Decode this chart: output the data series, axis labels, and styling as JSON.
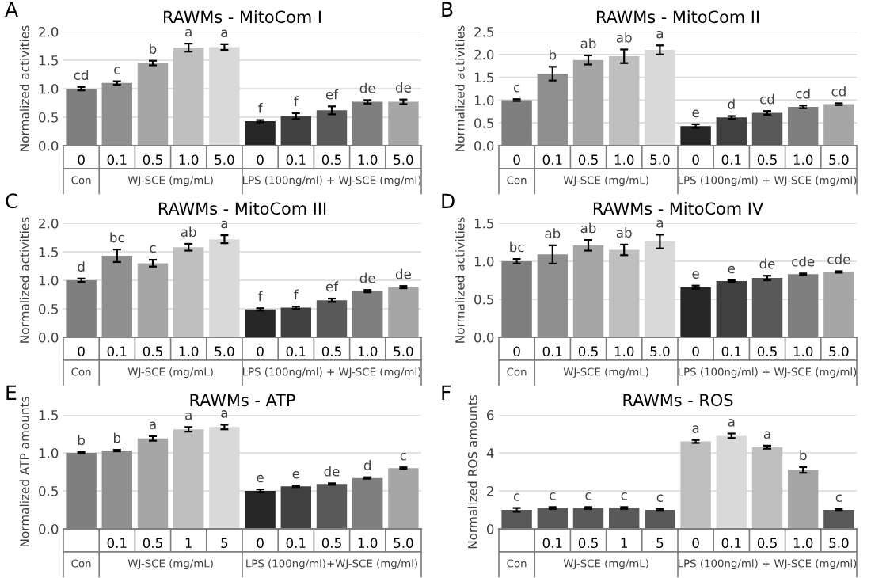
{
  "chart_data": [
    {
      "type": "bar",
      "title": "RAWMs - MitoCom I",
      "ylabel": "Normalized activities",
      "annotations": [
        "A",
        "Con",
        "WJ-SCE (mg/mL)",
        "LPS (100ng/ml) + WJ-SCE (mg/ml)"
      ],
      "categories": [
        "0",
        "0.1",
        "0.5",
        "1.0",
        "5.0",
        "0",
        "0.1",
        "0.5",
        "1.0",
        "5.0"
      ],
      "values": [
        1.0,
        1.1,
        1.45,
        1.72,
        1.73,
        0.43,
        0.52,
        0.62,
        0.77,
        0.77
      ],
      "errors": [
        0.03,
        0.03,
        0.04,
        0.07,
        0.05,
        0.02,
        0.05,
        0.07,
        0.03,
        0.04
      ],
      "value_labels": [
        "cd",
        "c",
        "b",
        "a",
        "a",
        "f",
        "f",
        "ef",
        "de",
        "de"
      ],
      "colors": [
        "#7f7f7f",
        "#8f8f8f",
        "#a6a6a6",
        "#bfbfbf",
        "#d9d9d9",
        "#262626",
        "#404040",
        "#595959",
        "#7f7f7f",
        "#a6a6a6"
      ],
      "ylim": [
        0,
        2
      ],
      "yticks": [
        {
          "value": 0,
          "label": "0.0"
        },
        {
          "value": 0.5,
          "label": "0.5"
        },
        {
          "value": 1,
          "label": "1.0"
        },
        {
          "value": 1.5,
          "label": "1.5"
        },
        {
          "value": 2,
          "label": "2.0"
        }
      ],
      "grid": "y",
      "legend": false
    },
    {
      "type": "bar",
      "title": "RAWMs - MitoCom II",
      "ylabel": "Normalized activities",
      "annotations": [
        "B",
        "Con",
        "WJ-SCE (mg/mL)",
        "LPS (100ng/ml) + WJ-SCE (mg/ml)"
      ],
      "categories": [
        "0",
        "0.1",
        "0.5",
        "1.0",
        "5.0",
        "0",
        "0.1",
        "0.5",
        "1.0",
        "5.0"
      ],
      "values": [
        1.0,
        1.58,
        1.88,
        1.96,
        2.1,
        0.43,
        0.62,
        0.72,
        0.85,
        0.91
      ],
      "errors": [
        0.02,
        0.15,
        0.1,
        0.15,
        0.1,
        0.04,
        0.03,
        0.04,
        0.03,
        0.02
      ],
      "value_labels": [
        "c",
        "b",
        "ab",
        "ab",
        "a",
        "e",
        "d",
        "cd",
        "cd",
        "cd"
      ],
      "colors": [
        "#7f7f7f",
        "#8f8f8f",
        "#a6a6a6",
        "#bfbfbf",
        "#d9d9d9",
        "#262626",
        "#404040",
        "#595959",
        "#7f7f7f",
        "#a6a6a6"
      ],
      "ylim": [
        0,
        2.5
      ],
      "yticks": [
        {
          "value": 0,
          "label": "0.0"
        },
        {
          "value": 0.5,
          "label": "0.5"
        },
        {
          "value": 1,
          "label": "1.0"
        },
        {
          "value": 1.5,
          "label": "1.5"
        },
        {
          "value": 2,
          "label": "2.0"
        },
        {
          "value": 2.5,
          "label": "2.5"
        }
      ],
      "grid": "y",
      "legend": false
    },
    {
      "type": "bar",
      "title": "RAWMs - MitoCom III",
      "ylabel": "Normalized activities",
      "annotations": [
        "C",
        "Con",
        "WJ-SCE (mg/mL)",
        "LPS (100ng/ml) + WJ-SCE (mg/ml)"
      ],
      "categories": [
        "0",
        "0.1",
        "0.5",
        "1.0",
        "5.0",
        "0",
        "0.1",
        "0.5",
        "1.0",
        "5.0"
      ],
      "values": [
        1.0,
        1.43,
        1.3,
        1.58,
        1.72,
        0.49,
        0.52,
        0.65,
        0.81,
        0.88
      ],
      "errors": [
        0.03,
        0.11,
        0.06,
        0.06,
        0.07,
        0.02,
        0.02,
        0.03,
        0.02,
        0.02
      ],
      "value_labels": [
        "d",
        "bc",
        "c",
        "ab",
        "a",
        "f",
        "f",
        "ef",
        "de",
        "de"
      ],
      "colors": [
        "#7f7f7f",
        "#8f8f8f",
        "#a6a6a6",
        "#bfbfbf",
        "#d9d9d9",
        "#262626",
        "#404040",
        "#595959",
        "#7f7f7f",
        "#a6a6a6"
      ],
      "ylim": [
        0,
        2
      ],
      "yticks": [
        {
          "value": 0,
          "label": "0.0"
        },
        {
          "value": 0.5,
          "label": "0.5"
        },
        {
          "value": 1,
          "label": "1.0"
        },
        {
          "value": 1.5,
          "label": "1.5"
        },
        {
          "value": 2,
          "label": "2.0"
        }
      ],
      "grid": "y",
      "legend": false
    },
    {
      "type": "bar",
      "title": "RAWMs - MitoCom IV",
      "ylabel": "Normalized activities",
      "annotations": [
        "D",
        "Con",
        "WJ-SCE (mg/mL)",
        "LPS (100ng/ml) + WJ-SCE (mg/ml)"
      ],
      "categories": [
        "0",
        "0.1",
        "0.5",
        "1.0",
        "5.0",
        "0",
        "0.1",
        "0.5",
        "1.0",
        "5.0"
      ],
      "values": [
        1.0,
        1.09,
        1.21,
        1.15,
        1.26,
        0.66,
        0.74,
        0.78,
        0.83,
        0.86
      ],
      "errors": [
        0.03,
        0.12,
        0.07,
        0.07,
        0.09,
        0.02,
        0.01,
        0.03,
        0.01,
        0.01
      ],
      "value_labels": [
        "bc",
        "ab",
        "ab",
        "ab",
        "a",
        "e",
        "e",
        "de",
        "cde",
        "cde"
      ],
      "colors": [
        "#7f7f7f",
        "#8f8f8f",
        "#a6a6a6",
        "#bfbfbf",
        "#d9d9d9",
        "#262626",
        "#404040",
        "#595959",
        "#7f7f7f",
        "#a6a6a6"
      ],
      "ylim": [
        0,
        1.5
      ],
      "yticks": [
        {
          "value": 0,
          "label": "0.0"
        },
        {
          "value": 0.5,
          "label": "0.5"
        },
        {
          "value": 1,
          "label": "1.0"
        },
        {
          "value": 1.5,
          "label": "1.5"
        }
      ],
      "grid": "y",
      "legend": false
    },
    {
      "type": "bar",
      "title": "RAWMs - ATP",
      "ylabel": "Normalized ATP amounts",
      "annotations": [
        "E",
        "Con",
        "WJ-SCE (mg/mL)",
        "LPS (100ng/ml)+WJ-SCE (mg/ml)"
      ],
      "categories": [
        null,
        "0.1",
        "0.5",
        "1",
        "5",
        "0",
        "0.1",
        "0.5",
        "1.0",
        "5.0"
      ],
      "values": [
        1.0,
        1.03,
        1.19,
        1.31,
        1.34,
        0.5,
        0.56,
        0.59,
        0.67,
        0.8
      ],
      "errors": [
        0.01,
        0.01,
        0.03,
        0.03,
        0.03,
        0.02,
        0.01,
        0.01,
        0.01,
        0.01
      ],
      "value_labels": [
        "b",
        "b",
        "a",
        "a",
        "a",
        "e",
        "e",
        "de",
        "d",
        "c"
      ],
      "colors": [
        "#7f7f7f",
        "#8f8f8f",
        "#a6a6a6",
        "#bfbfbf",
        "#d9d9d9",
        "#262626",
        "#404040",
        "#595959",
        "#7f7f7f",
        "#a6a6a6"
      ],
      "ylim": [
        0,
        1.5
      ],
      "yticks": [
        {
          "value": 0,
          "label": "0.0"
        },
        {
          "value": 0.5,
          "label": "0.5"
        },
        {
          "value": 1,
          "label": "1.0"
        },
        {
          "value": 1.5,
          "label": "1.5"
        }
      ],
      "grid": "y",
      "legend": false
    },
    {
      "type": "bar",
      "title": "RAWMs - ROS",
      "ylabel": "Normalized ROS amounts",
      "annotations": [
        "F",
        "Con",
        "WJ-SCE (mg/mL)",
        "LPS (100ng/ml) + WJ-SCE (mg/ml)"
      ],
      "categories": [
        null,
        "0.1",
        "0.5",
        "1",
        "5",
        "0",
        "0.1",
        "0.5",
        "1.0",
        "5.0"
      ],
      "values": [
        1.0,
        1.1,
        1.1,
        1.1,
        1.0,
        4.6,
        4.9,
        4.3,
        3.1,
        1.0
      ],
      "errors": [
        0.1,
        0.05,
        0.05,
        0.05,
        0.05,
        0.08,
        0.12,
        0.08,
        0.15,
        0.05
      ],
      "value_labels": [
        "c",
        "c",
        "c",
        "c",
        "c",
        "a",
        "a",
        "a",
        "b",
        "c"
      ],
      "colors": [
        "#595959",
        "#595959",
        "#595959",
        "#595959",
        "#595959",
        "#bfbfbf",
        "#d9d9d9",
        "#bfbfbf",
        "#a6a6a6",
        "#595959"
      ],
      "ylim": [
        0,
        6
      ],
      "yticks": [
        0,
        2,
        4,
        6
      ],
      "grid": "y",
      "legend": false
    }
  ]
}
